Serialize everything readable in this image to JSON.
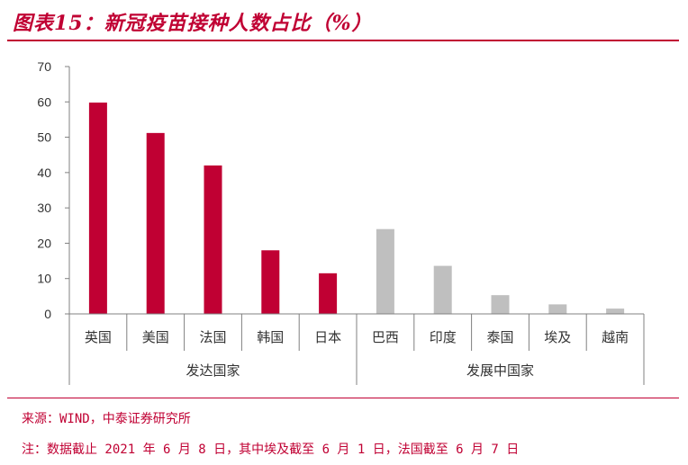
{
  "header": {
    "title": "图表15：新冠疫苗接种人数占比（%）"
  },
  "footer": {
    "source": "来源：WIND，中泰证券研究所",
    "note": "注：数据截止 2021 年 6 月 8 日，其中埃及截至 6 月 1 日，法国截至 6 月 7 日"
  },
  "colors": {
    "accent": "#c00033",
    "developed_bar": "#c00033",
    "developing_bar": "#bfbfbf"
  },
  "chart_data": {
    "type": "bar",
    "title": "图表15：新冠疫苗接种人数占比（%）",
    "xlabel": "",
    "ylabel": "",
    "ylim": [
      0,
      70
    ],
    "yticks": [
      0,
      10,
      20,
      30,
      40,
      50,
      60,
      70
    ],
    "grid": false,
    "legend": "none",
    "categories": [
      "英国",
      "美国",
      "法国",
      "韩国",
      "日本",
      "巴西",
      "印度",
      "泰国",
      "埃及",
      "越南"
    ],
    "values": [
      59.8,
      51.2,
      42.0,
      18.0,
      11.5,
      24.0,
      13.6,
      5.3,
      2.7,
      1.5
    ],
    "groups": [
      {
        "label": "发达国家",
        "categories": [
          "英国",
          "美国",
          "法国",
          "韩国",
          "日本"
        ]
      },
      {
        "label": "发展中国家",
        "categories": [
          "巴西",
          "印度",
          "泰国",
          "埃及",
          "越南"
        ]
      }
    ]
  }
}
